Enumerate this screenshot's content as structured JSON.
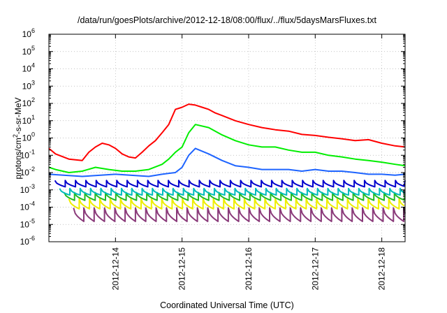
{
  "chart_data": {
    "type": "line",
    "title": "/data/run/goesPlots/archive/2012-12-18/08:00/flux/../flux/5daysMarsFluxes.txt",
    "xlabel": "Coordinated Universal Time (UTC)",
    "ylabel_parts": [
      "protons/cm",
      "2",
      "-s-sr-MeV"
    ],
    "yscale": "log",
    "ylim_exp": [
      -6,
      6
    ],
    "y_tick_labels": [
      {
        "base": "10",
        "exp": "-6"
      },
      {
        "base": "10",
        "exp": "-5"
      },
      {
        "base": "10",
        "exp": "-4"
      },
      {
        "base": "10",
        "exp": "-3"
      },
      {
        "base": "10",
        "exp": "-2"
      },
      {
        "base": "10",
        "exp": "-1"
      },
      {
        "base": "10",
        "exp": "0"
      },
      {
        "base": "10",
        "exp": "1"
      },
      {
        "base": "10",
        "exp": "2"
      },
      {
        "base": "10",
        "exp": "3"
      },
      {
        "base": "10",
        "exp": "4"
      },
      {
        "base": "10",
        "exp": "5"
      },
      {
        "base": "10",
        "exp": "6"
      }
    ],
    "x_tick_labels": [
      "2012-12-14",
      "2012-12-15",
      "2012-12-16",
      "2012-12-17",
      "2012-12-18"
    ],
    "xlim_days": [
      0,
      5.35
    ],
    "x_tick_days": [
      1,
      2,
      3,
      4,
      5
    ],
    "grid": true,
    "series": [
      {
        "color": "#ff0000",
        "x": [
          0.0,
          0.1,
          0.3,
          0.5,
          0.6,
          0.7,
          0.8,
          0.9,
          1.0,
          1.1,
          1.2,
          1.3,
          1.4,
          1.5,
          1.6,
          1.7,
          1.8,
          1.9,
          2.0,
          2.1,
          2.2,
          2.3,
          2.4,
          2.5,
          2.6,
          2.8,
          3.0,
          3.2,
          3.4,
          3.6,
          3.8,
          4.0,
          4.2,
          4.4,
          4.6,
          4.8,
          5.0,
          5.2,
          5.35
        ],
        "y": [
          0.25,
          0.12,
          0.06,
          0.05,
          0.15,
          0.3,
          0.5,
          0.4,
          0.25,
          0.12,
          0.08,
          0.07,
          0.15,
          0.35,
          0.7,
          2,
          6,
          45,
          60,
          90,
          80,
          60,
          45,
          28,
          20,
          10,
          6,
          4,
          3,
          2.5,
          1.6,
          1.4,
          1.1,
          0.9,
          0.7,
          0.8,
          0.5,
          0.35,
          0.3
        ]
      },
      {
        "color": "#00ee00",
        "x": [
          0.0,
          0.1,
          0.3,
          0.5,
          0.7,
          0.9,
          1.1,
          1.3,
          1.5,
          1.7,
          1.8,
          1.9,
          2.0,
          2.1,
          2.2,
          2.4,
          2.6,
          2.8,
          3.0,
          3.2,
          3.4,
          3.6,
          3.8,
          4.0,
          4.2,
          4.4,
          4.6,
          4.8,
          5.0,
          5.2,
          5.35
        ],
        "y": [
          0.02,
          0.015,
          0.01,
          0.012,
          0.02,
          0.015,
          0.012,
          0.012,
          0.015,
          0.03,
          0.06,
          0.15,
          0.3,
          2,
          6,
          4,
          1.5,
          0.7,
          0.4,
          0.3,
          0.3,
          0.2,
          0.15,
          0.15,
          0.1,
          0.08,
          0.06,
          0.05,
          0.04,
          0.03,
          0.025
        ]
      },
      {
        "color": "#1e64ff",
        "x": [
          0.0,
          0.5,
          1.0,
          1.5,
          1.7,
          1.8,
          1.9,
          2.0,
          2.1,
          2.2,
          2.4,
          2.6,
          2.8,
          3.0,
          3.2,
          3.4,
          3.6,
          3.8,
          4.0,
          4.2,
          4.4,
          4.6,
          4.8,
          5.0,
          5.2,
          5.35
        ],
        "y": [
          0.008,
          0.006,
          0.008,
          0.006,
          0.008,
          0.009,
          0.01,
          0.02,
          0.1,
          0.25,
          0.12,
          0.05,
          0.025,
          0.02,
          0.015,
          0.015,
          0.015,
          0.012,
          0.015,
          0.012,
          0.012,
          0.01,
          0.008,
          0.008,
          0.007,
          0.008
        ]
      },
      {
        "color": "#0000cc",
        "y_peak": 0.0035,
        "y_trough": 0.0015
      },
      {
        "color": "#00bbbb",
        "y_peak": 0.0012,
        "y_trough": 0.0005
      },
      {
        "color": "#22bb22",
        "y_peak": 0.0007,
        "y_trough": 0.00025
      },
      {
        "color": "#eeee00",
        "y_peak": 0.0003,
        "y_trough": 8e-05
      },
      {
        "color": "#8a3a7a",
        "y_peak": 9e-05,
        "y_trough": 1.5e-05
      }
    ]
  }
}
